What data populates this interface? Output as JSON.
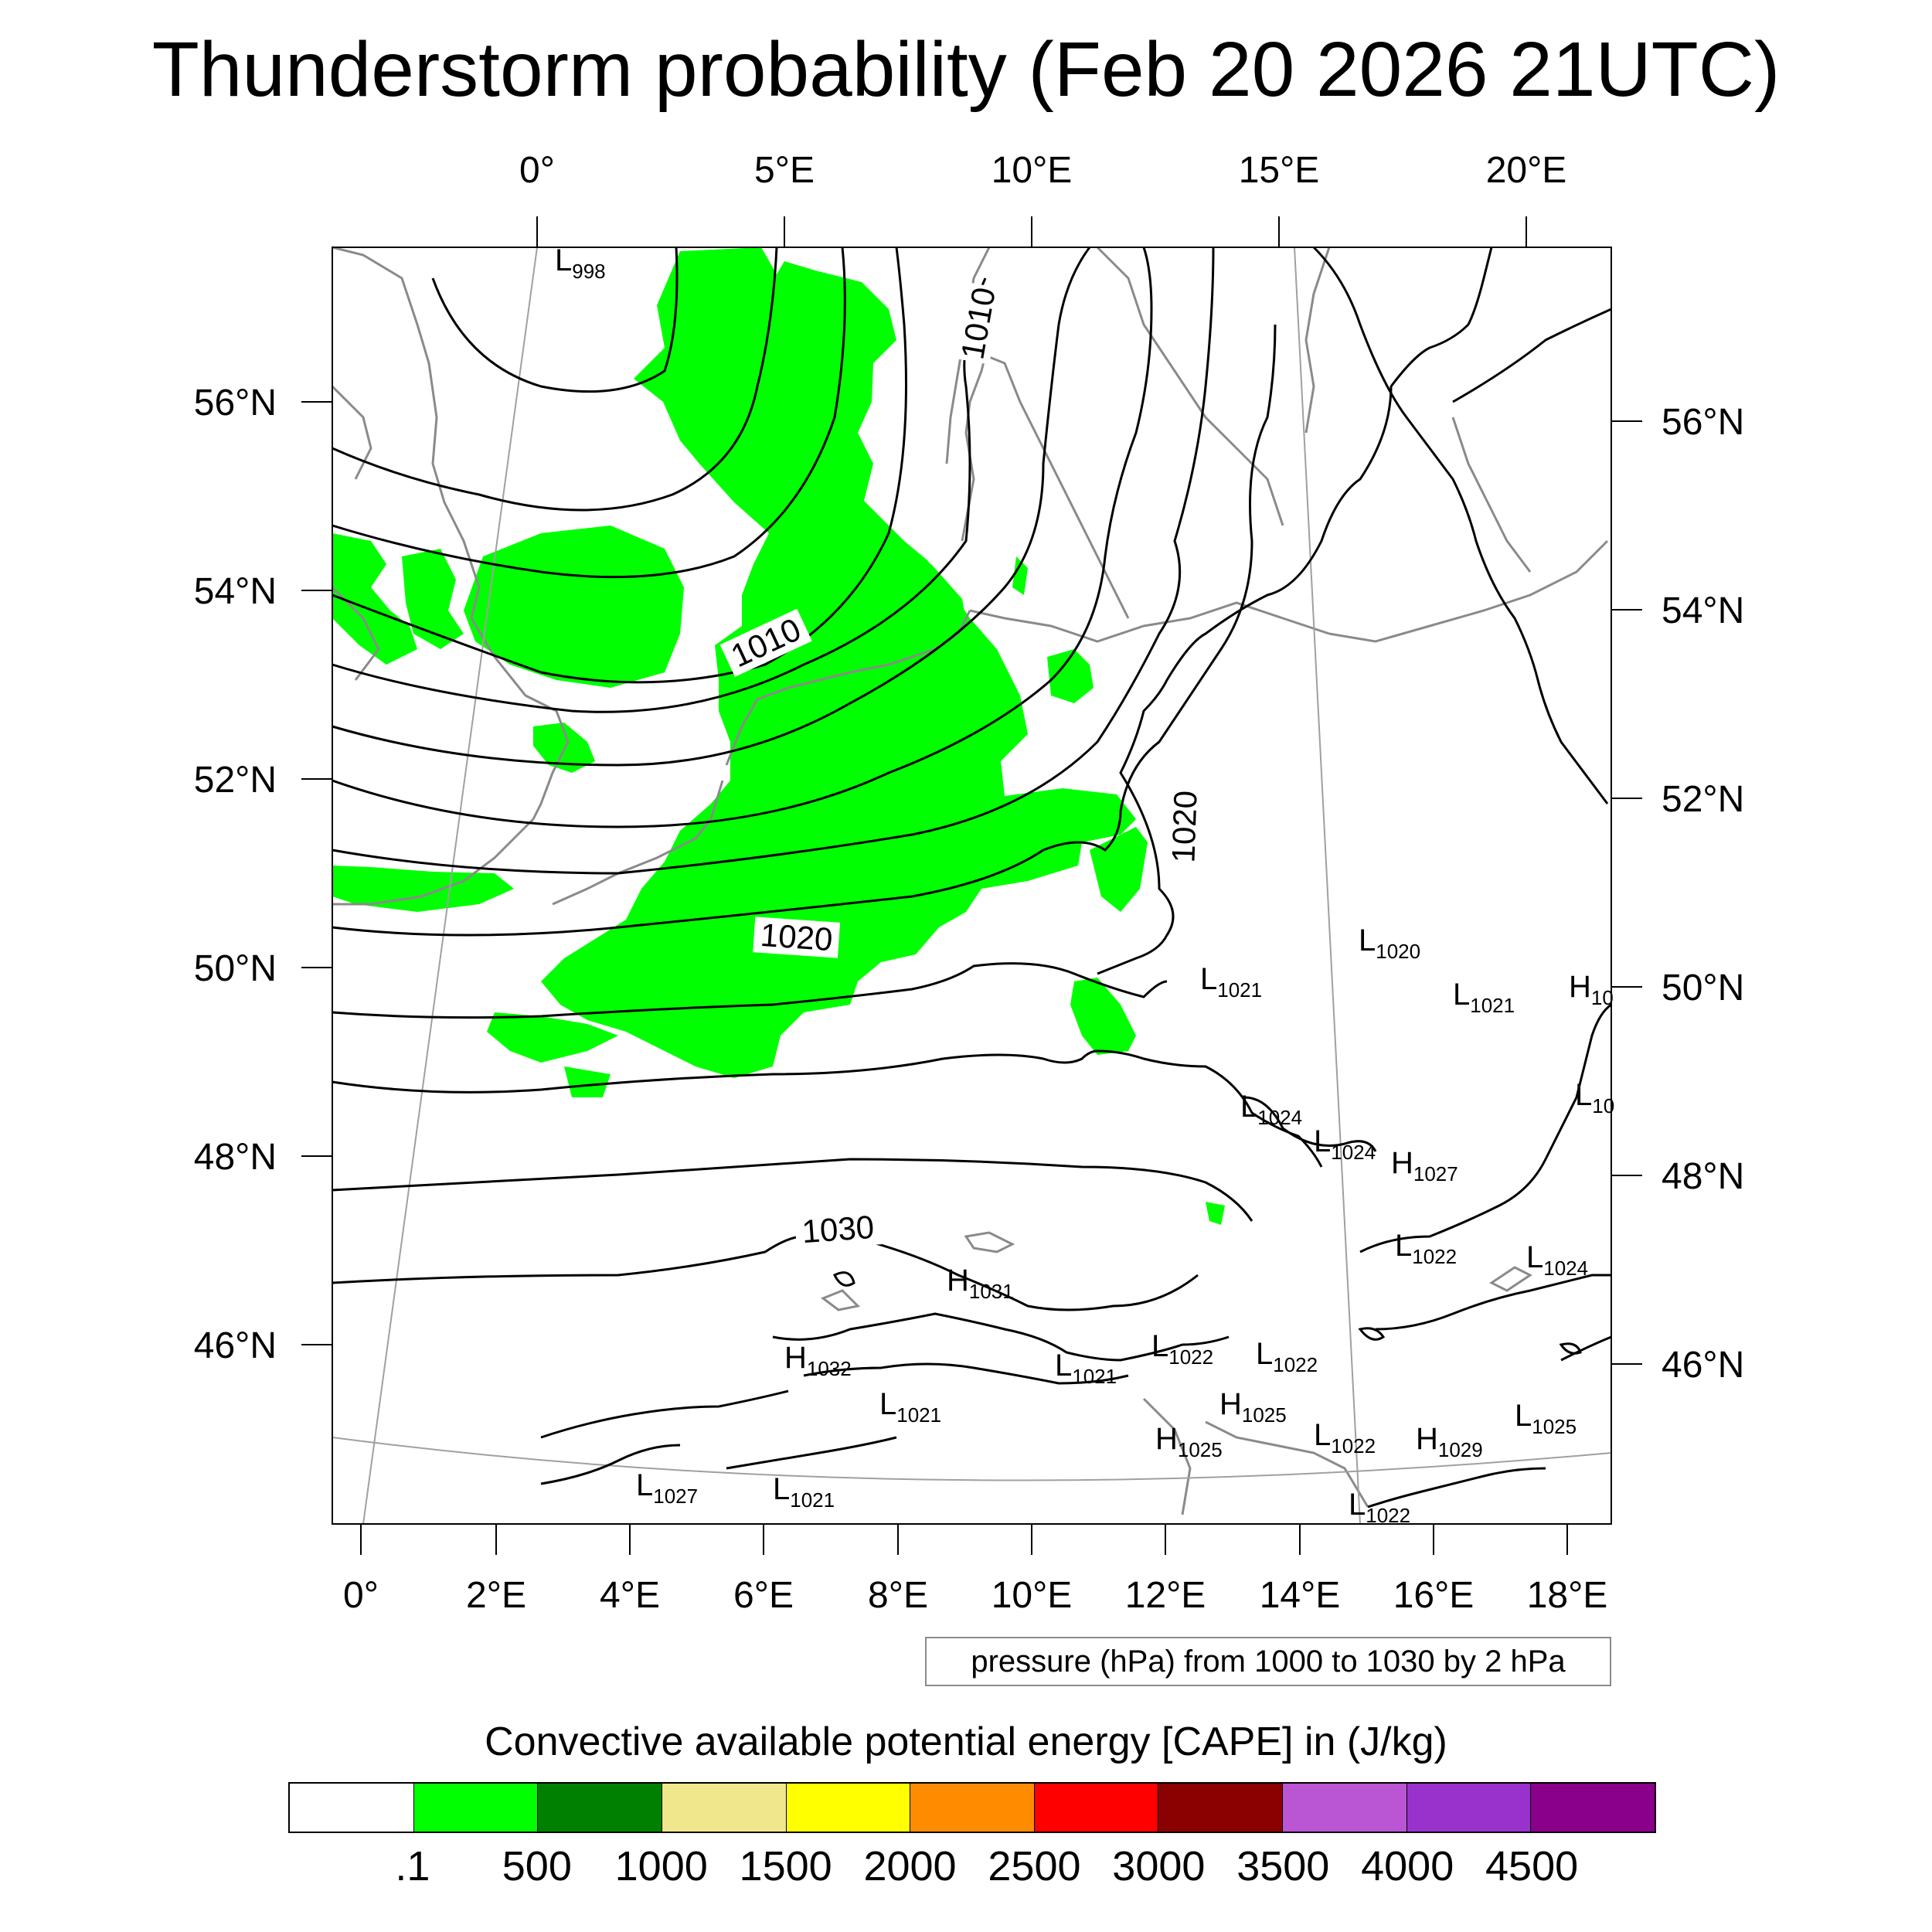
{
  "title": "Thunderstorm probability (Feb 20 2026 21UTC)",
  "top_axis_labels": [
    "0°",
    "5°E",
    "10°E",
    "15°E",
    "20°E"
  ],
  "left_axis_labels": [
    "56°N",
    "54°N",
    "52°N",
    "50°N",
    "48°N",
    "46°N"
  ],
  "right_axis_labels": [
    "56°N",
    "54°N",
    "52°N",
    "50°N",
    "48°N",
    "46°N"
  ],
  "bottom_axis_labels": [
    "0°",
    "2°E",
    "4°E",
    "6°E",
    "8°E",
    "10°E",
    "12°E",
    "14°E",
    "16°E",
    "18°E"
  ],
  "isobar_labels": [
    "1010",
    "1010",
    "1020",
    "1020",
    "1030"
  ],
  "pressure_centers": [
    {
      "type": "L",
      "value": "998"
    },
    {
      "type": "L",
      "value": "1020"
    },
    {
      "type": "L",
      "value": "1021"
    },
    {
      "type": "L",
      "value": "1021"
    },
    {
      "type": "H",
      "value": "10"
    },
    {
      "type": "L",
      "value": "10"
    },
    {
      "type": "L",
      "value": "1024"
    },
    {
      "type": "L",
      "value": "1024"
    },
    {
      "type": "H",
      "value": "1027"
    },
    {
      "type": "L",
      "value": "1022"
    },
    {
      "type": "L",
      "value": "1024"
    },
    {
      "type": "H",
      "value": "1031"
    },
    {
      "type": "H",
      "value": "1032"
    },
    {
      "type": "L",
      "value": "1021"
    },
    {
      "type": "L",
      "value": "1022"
    },
    {
      "type": "L",
      "value": "1022"
    },
    {
      "type": "L",
      "value": "1021"
    },
    {
      "type": "H",
      "value": "1025"
    },
    {
      "type": "H",
      "value": "1025"
    },
    {
      "type": "L",
      "value": "1022"
    },
    {
      "type": "H",
      "value": "1029"
    },
    {
      "type": "L",
      "value": "1025"
    },
    {
      "type": "L",
      "value": "1027"
    },
    {
      "type": "L",
      "value": "1021"
    },
    {
      "type": "L",
      "value": "1022"
    }
  ],
  "contour_info": "pressure (hPa) from 1000 to 1030 by 2 hPa",
  "colorbar": {
    "title": "Convective available potential energy [CAPE] in (J/kg)",
    "colors": [
      "#ffffff",
      "#00ff00",
      "#008000",
      "#f0e68c",
      "#ffff00",
      "#ff8c00",
      "#ff0000",
      "#8b0000",
      "#ba55d3",
      "#9932cc",
      "#8b008b"
    ],
    "labels": [
      ".1",
      "500",
      "1000",
      "1500",
      "2000",
      "2500",
      "3000",
      "3500",
      "4000",
      "4500"
    ]
  },
  "colors": {
    "cape_fill": "#00ff00",
    "isobar": "#000000",
    "coastline": "#8a8a8a",
    "graticule": "#a0a0a0"
  }
}
